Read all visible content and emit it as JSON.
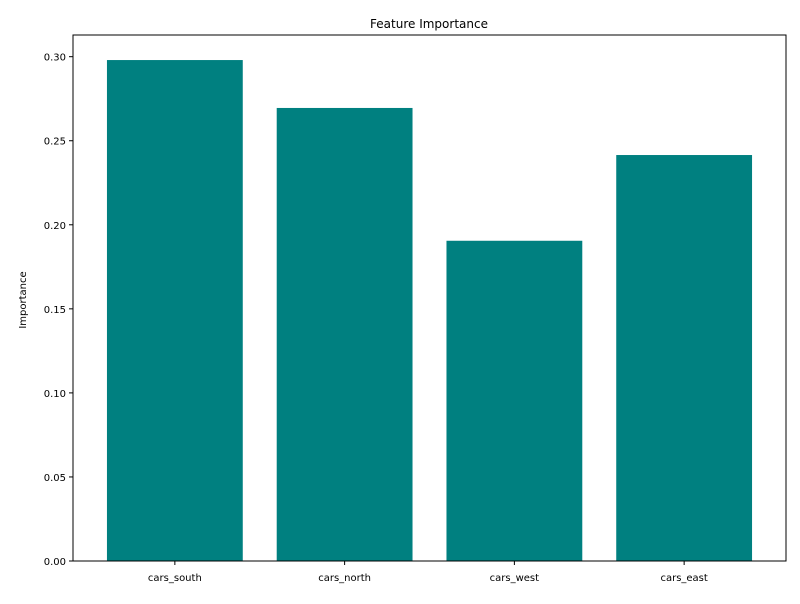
{
  "chart_data": {
    "type": "bar",
    "title": "Feature Importance",
    "xlabel": "",
    "ylabel": "Importance",
    "categories": [
      "cars_south",
      "cars_north",
      "cars_west",
      "cars_east"
    ],
    "values": [
      0.298,
      0.2695,
      0.1905,
      0.2415
    ],
    "ylim": [
      0,
      0.3129
    ],
    "yticks": [
      0.0,
      0.05,
      0.1,
      0.15,
      0.2,
      0.25,
      0.3
    ],
    "ytick_labels": [
      "0.00",
      "0.05",
      "0.10",
      "0.15",
      "0.20",
      "0.25",
      "0.30"
    ],
    "bar_color": "#008080",
    "grid": false,
    "legend": "none"
  }
}
